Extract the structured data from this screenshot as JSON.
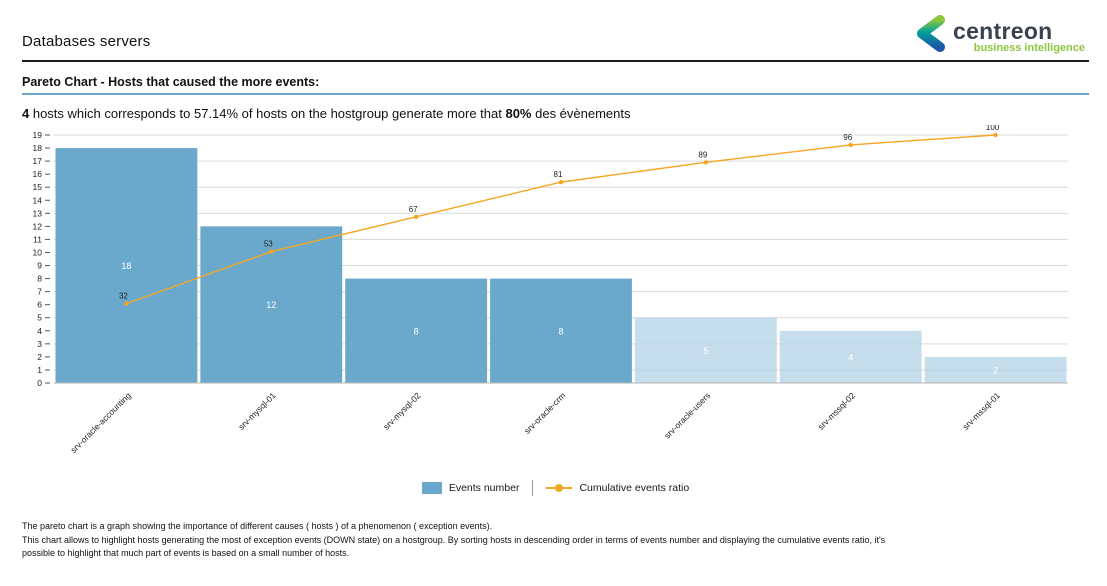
{
  "header": {
    "title": "Databases servers",
    "logo": {
      "brand": "centreon",
      "tagline": "business intelligence",
      "brand_color": "#39424e",
      "tagline_color": "#8dc63f"
    }
  },
  "section": {
    "title": "Pareto Chart - Hosts that caused the more events:",
    "underline_color": "#69a8cb"
  },
  "intro": {
    "bold1": "4",
    "text1": " hosts which corresponds to 57.14% of hosts on the hostgroup generate more that ",
    "bold2": "80%",
    "text2": " des évènements"
  },
  "chart_data": {
    "type": "bar",
    "subtype": "pareto (bars + cumulative line)",
    "categories": [
      "srv-oracle-accounting",
      "srv-mysql-01",
      "srv-mysql-02",
      "srv-oracle-crm",
      "srv-oracle-users",
      "srv-mssql-02",
      "srv-mssql-01"
    ],
    "series": [
      {
        "name": "Events number",
        "type": "bar",
        "values": [
          18,
          12,
          8,
          8,
          5,
          4,
          2
        ]
      },
      {
        "name": "Cumulative events ratio",
        "type": "line",
        "values": [
          32,
          53,
          67,
          81,
          89,
          96,
          100
        ],
        "unit": "%",
        "color": "#f5a623"
      }
    ],
    "title": "",
    "xlabel": "",
    "ylabel": "",
    "ylim": [
      0,
      19
    ],
    "y_ticks": [
      0,
      1,
      2,
      3,
      4,
      5,
      6,
      7,
      8,
      9,
      10,
      11,
      12,
      13,
      14,
      15,
      16,
      17,
      18,
      19
    ],
    "grid": "horizontal gridlines at odd values 1-19",
    "legend_position": "bottom-center",
    "major_bar_count": 4,
    "bar_color_major": "#6aa9cb",
    "bar_color_minor": "#b9d6e7",
    "bar_value_label_color": "#ffffff",
    "line_label_color": "#222222"
  },
  "legend": {
    "items": [
      {
        "label": "Events number",
        "marker": "square",
        "color": "#6aa9cb"
      },
      {
        "label": "Cumulative events ratio",
        "marker": "line-dot",
        "color": "#f5a623"
      }
    ]
  },
  "footer": {
    "lines": [
      "The pareto chart is a graph showing the importance of different causes ( hosts ) of a phenomenon ( exception events).",
      "This chart allows to highlight hosts generating the most of exception events (DOWN state) on a hostgroup. By sorting hosts in descending order in terms of events number and displaying the cumulative events ratio, it's",
      "possible to highlight that much part of events is based on a small number of hosts."
    ]
  }
}
